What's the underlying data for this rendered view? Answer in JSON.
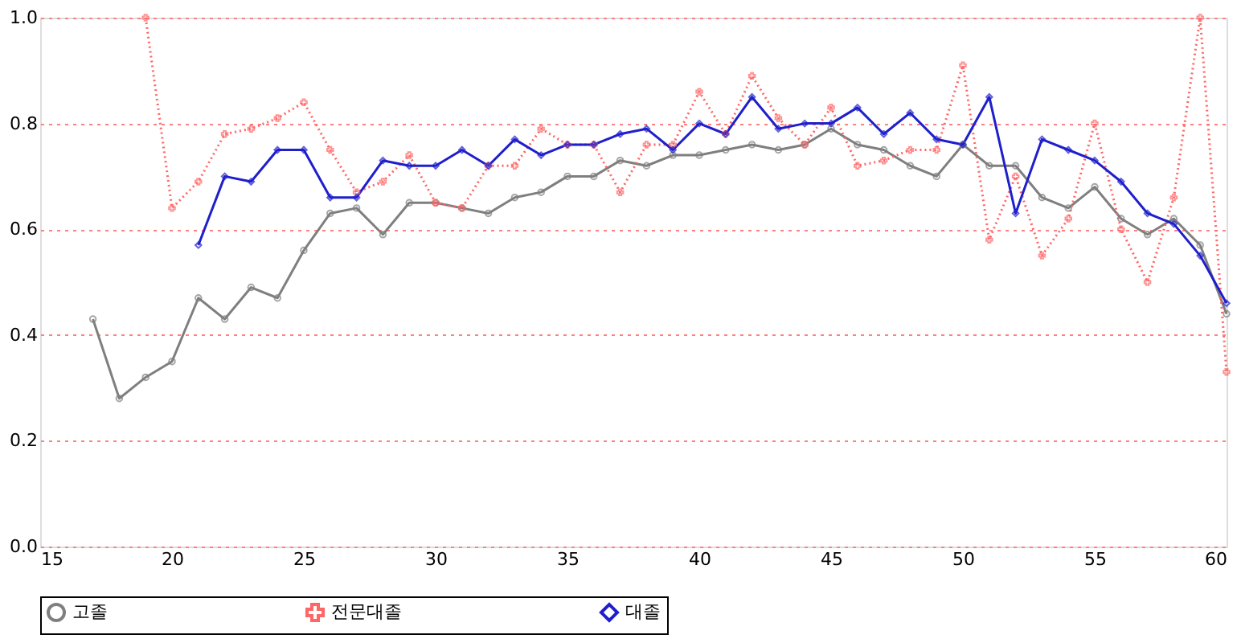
{
  "chart_data": {
    "type": "line",
    "xlim": [
      15,
      60
    ],
    "xticks": [
      15,
      20,
      25,
      30,
      35,
      40,
      45,
      50,
      55,
      60
    ],
    "ylim": [
      0,
      1.0
    ],
    "yticks": [
      {
        "value": 0,
        "label": "0.0"
      },
      {
        "value": 0.2,
        "label": "0.2"
      },
      {
        "value": 0.4,
        "label": "0.4"
      },
      {
        "value": 0.6,
        "label": "0.6"
      },
      {
        "value": 0.8,
        "label": "0.8"
      },
      {
        "value": 1.0,
        "label": "1.0"
      }
    ],
    "grid": "y",
    "legend": "bottom",
    "series": [
      {
        "name": "고졸",
        "color": "#7f7f7f",
        "marker": "circle",
        "line_style": "solid",
        "x": [
          17,
          18,
          19,
          20,
          21,
          22,
          23,
          24,
          25,
          26,
          27,
          28,
          29,
          30,
          31,
          32,
          33,
          34,
          35,
          36,
          37,
          38,
          39,
          40,
          41,
          42,
          43,
          44,
          45,
          46,
          47,
          48,
          49,
          50,
          51,
          52,
          53,
          54,
          55,
          56,
          57,
          58,
          59,
          60
        ],
        "values": [
          0.43,
          0.28,
          0.32,
          0.35,
          0.47,
          0.43,
          0.49,
          0.47,
          0.56,
          0.63,
          0.64,
          0.59,
          0.65,
          0.65,
          0.64,
          0.63,
          0.66,
          0.67,
          0.7,
          0.7,
          0.73,
          0.72,
          0.74,
          0.74,
          0.75,
          0.76,
          0.75,
          0.76,
          0.79,
          0.76,
          0.75,
          0.72,
          0.7,
          0.76,
          0.72,
          0.72,
          0.66,
          0.64,
          0.68,
          0.62,
          0.59,
          0.62,
          0.57,
          0.44
        ]
      },
      {
        "name": "전문대졸",
        "color": "#ff6666",
        "marker": "cross",
        "line_style": "dotted",
        "x": [
          19,
          20,
          21,
          22,
          23,
          24,
          25,
          26,
          27,
          28,
          29,
          30,
          31,
          32,
          33,
          34,
          35,
          36,
          37,
          38,
          39,
          40,
          41,
          42,
          43,
          44,
          45,
          46,
          47,
          48,
          49,
          50,
          51,
          52,
          53,
          54,
          55,
          56,
          57,
          58,
          59,
          60
        ],
        "values": [
          1.0,
          0.64,
          0.69,
          0.78,
          0.79,
          0.81,
          0.84,
          0.75,
          0.67,
          0.69,
          0.74,
          0.65,
          0.64,
          0.72,
          0.72,
          0.79,
          0.76,
          0.76,
          0.67,
          0.76,
          0.76,
          0.86,
          0.78,
          0.89,
          0.81,
          0.76,
          0.83,
          0.72,
          0.73,
          0.75,
          0.75,
          0.91,
          0.58,
          0.7,
          0.55,
          0.62,
          0.8,
          0.6,
          0.5,
          0.66,
          1.0,
          0.33
        ]
      },
      {
        "name": "대졸",
        "color": "#1f1fcc",
        "marker": "diamond",
        "line_style": "solid",
        "x": [
          21,
          22,
          23,
          24,
          25,
          26,
          27,
          28,
          29,
          30,
          31,
          32,
          33,
          34,
          35,
          36,
          37,
          38,
          39,
          40,
          41,
          42,
          43,
          44,
          45,
          46,
          47,
          48,
          49,
          50,
          51,
          52,
          53,
          54,
          55,
          56,
          57,
          58,
          59,
          60
        ],
        "values": [
          0.57,
          0.7,
          0.69,
          0.75,
          0.75,
          0.66,
          0.66,
          0.73,
          0.72,
          0.72,
          0.75,
          0.72,
          0.77,
          0.74,
          0.76,
          0.76,
          0.78,
          0.79,
          0.75,
          0.8,
          0.78,
          0.85,
          0.79,
          0.8,
          0.8,
          0.83,
          0.78,
          0.82,
          0.77,
          0.76,
          0.85,
          0.63,
          0.77,
          0.75,
          0.73,
          0.69,
          0.63,
          0.61,
          0.55,
          0.46
        ]
      }
    ]
  }
}
